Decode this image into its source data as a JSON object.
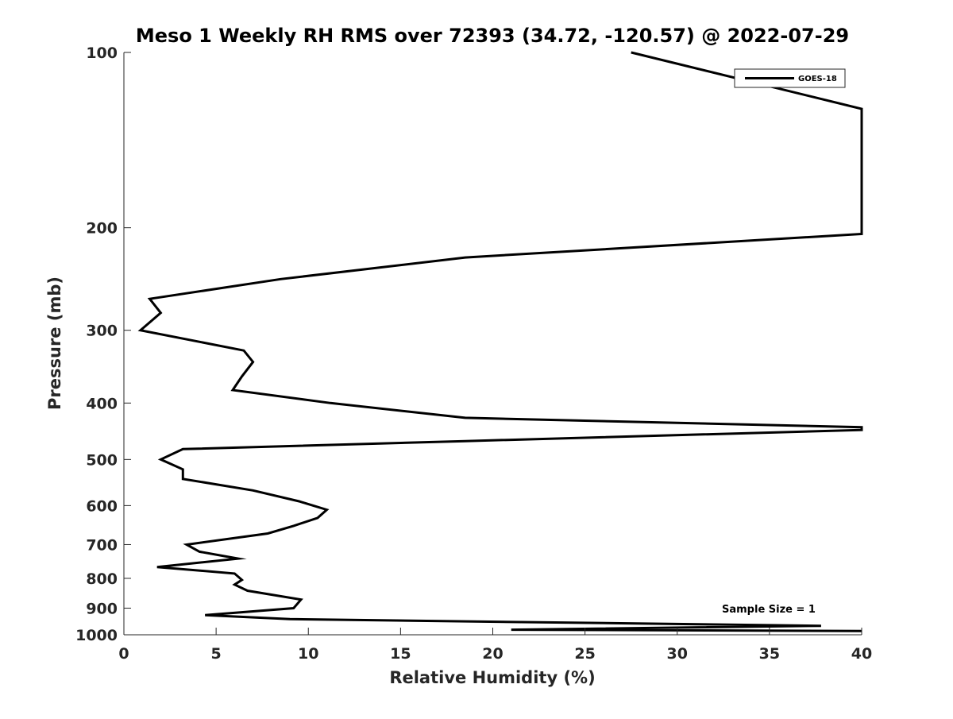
{
  "chart_data": {
    "type": "line",
    "title": "Meso 1 Weekly RH RMS over 72393 (34.72, -120.57) @ 2022-07-29",
    "xlabel": "Relative Humidity (%)",
    "ylabel": "Pressure (mb)",
    "xlim": [
      0,
      40
    ],
    "ylim": [
      100,
      1000
    ],
    "y_scale": "log",
    "y_reversed": true,
    "x_ticks": [
      0,
      5,
      10,
      15,
      20,
      25,
      30,
      35,
      40
    ],
    "y_ticks": [
      100,
      200,
      300,
      400,
      500,
      600,
      700,
      800,
      900,
      1000
    ],
    "grid": false,
    "legend_position": "top-right",
    "annotation": "Sample Size = 1",
    "colors": {
      "line": "#000000",
      "axis": "#262626"
    },
    "series": [
      {
        "name": "GOES-18",
        "points": [
          [
            27.5,
            100
          ],
          [
            40,
            125
          ],
          [
            40,
            205
          ],
          [
            18.5,
            225
          ],
          [
            8.5,
            245
          ],
          [
            1.4,
            265
          ],
          [
            2.0,
            280
          ],
          [
            0.9,
            300
          ],
          [
            6.5,
            325
          ],
          [
            7.0,
            340
          ],
          [
            6.4,
            360
          ],
          [
            5.9,
            380
          ],
          [
            11.2,
            400
          ],
          [
            18.5,
            424
          ],
          [
            40,
            440
          ],
          [
            40,
            445
          ],
          [
            18.5,
            465
          ],
          [
            3.2,
            480
          ],
          [
            2.0,
            500
          ],
          [
            3.2,
            520
          ],
          [
            3.2,
            540
          ],
          [
            7.0,
            565
          ],
          [
            9.5,
            590
          ],
          [
            11.0,
            610
          ],
          [
            10.5,
            630
          ],
          [
            9.2,
            650
          ],
          [
            7.8,
            670
          ],
          [
            3.4,
            700
          ],
          [
            4.1,
            720
          ],
          [
            6.2,
            740
          ],
          [
            1.8,
            765
          ],
          [
            6.0,
            785
          ],
          [
            6.4,
            805
          ],
          [
            6.0,
            820
          ],
          [
            6.7,
            840
          ],
          [
            9.6,
            870
          ],
          [
            9.2,
            900
          ],
          [
            4.4,
            925
          ],
          [
            9.0,
            940
          ],
          [
            37.8,
            965
          ],
          [
            21.0,
            980
          ],
          [
            40,
            985
          ]
        ]
      }
    ]
  }
}
